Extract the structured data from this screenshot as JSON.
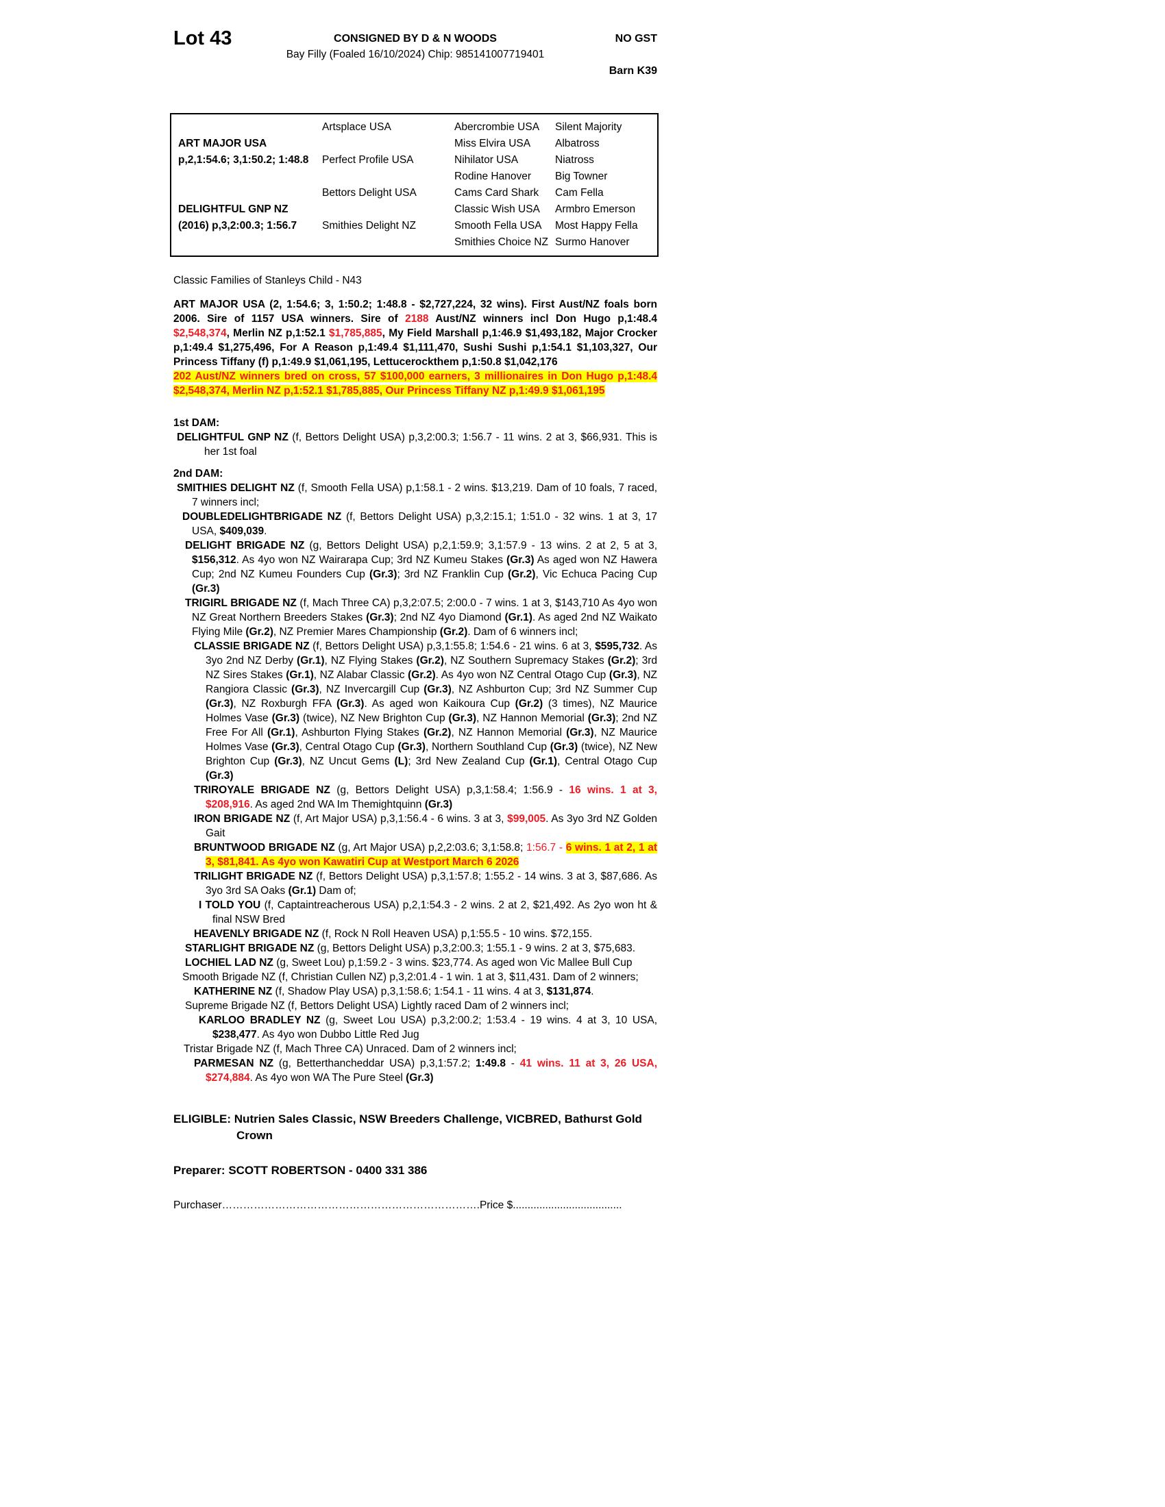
{
  "colors": {
    "red": "#ed1c24",
    "highlight": "#ffff00"
  },
  "header": {
    "lot": "Lot 43",
    "consignor": "CONSIGNED BY D & N WOODS",
    "no_gst": "NO GST",
    "foal_info": "Bay Filly (Foaled 16/10/2024) Chip: 985141007719401",
    "barn": "Barn K39"
  },
  "pedigree": {
    "rows": [
      [
        "",
        "Artsplace USA",
        "Abercrombie USA",
        "Silent Majority"
      ],
      [
        "ART MAJOR USA",
        "",
        "Miss Elvira USA",
        "Albatross"
      ],
      [
        "p,2,1:54.6; 3,1:50.2; 1:48.8",
        "Perfect Profile USA",
        "Nihilator USA",
        "Niatross"
      ],
      [
        "",
        "",
        "Rodine Hanover",
        "Big Towner"
      ],
      [
        "",
        "Bettors Delight USA",
        "Cams Card Shark",
        "Cam Fella"
      ],
      [
        "DELIGHTFUL GNP NZ",
        "",
        "Classic Wish USA",
        "Armbro Emerson"
      ],
      [
        "(2016) p,3,2:00.3; 1:56.7",
        "Smithies Delight NZ",
        "Smooth Fella USA",
        "Most Happy Fella"
      ],
      [
        "",
        "",
        "Smithies Choice NZ",
        "Surmo Hanover"
      ]
    ]
  },
  "body_paras": [
    {
      "name": "family-line",
      "ind": "c0",
      "mt": 24,
      "justify": false,
      "seg": [
        [
          "n",
          "Classic Families of Stanleys Child - N43"
        ]
      ]
    },
    {
      "name": "sire-paragraph",
      "ind": "c0",
      "mt": 14,
      "seg": [
        [
          "b",
          "ART MAJOR USA (2, 1:54.6; 3, 1:50.2; 1:48.8 - $2,727,224, 32 wins). First Aust/NZ foals born 2006. Sire of 1157 USA winners. Sire of "
        ],
        [
          "rb",
          "2188"
        ],
        [
          "b",
          " Aust/NZ winners incl Don Hugo p,1:48.4 "
        ],
        [
          "rb",
          "$2,548,374"
        ],
        [
          "b",
          ", Merlin NZ p,1:52.1 "
        ],
        [
          "rb",
          "$1,785,885"
        ],
        [
          "b",
          ", My Field Marshall p,1:46.9 $1,493,182, Major Crocker p,1:49.4 $1,275,496, For A Reason p,1:49.4 $1,111,470, Sushi Sushi p,1:54.1 $1,103,327, Our Princess Tiffany (f) p,1:49.9 $1,061,195, Lettucerockthem p,1:50.8 $1,042,176"
        ]
      ]
    },
    {
      "name": "cross-highlight-paragraph",
      "ind": "c0",
      "mt": 0,
      "seg": [
        [
          "hl",
          "202 Aust/NZ winners bred on cross, 57 $100,000 earners, 3 millionaires in Don Hugo p,1:48.4 $2,548,374, Merlin NZ p,1:52.1 $1,785,885, Our Princess Tiffany NZ p,1:49.9 $1,061,195"
        ]
      ]
    },
    {
      "name": "first-dam-heading",
      "ind": "c0",
      "mt": 26,
      "justify": false,
      "seg": [
        [
          "b",
          "1st DAM:"
        ]
      ]
    },
    {
      "name": "dam-entry-delightful-gnp",
      "ind": "c1b",
      "mt": 0,
      "seg": [
        [
          "b",
          "DELIGHTFUL GNP NZ "
        ],
        [
          "n",
          "(f, Bettors Delight USA) p,3,2:00.3; 1:56.7 - 11 wins. 2 at 3, $66,931. This is her 1st foal"
        ]
      ]
    },
    {
      "name": "second-dam-heading",
      "ind": "c0",
      "mt": 11,
      "justify": false,
      "seg": [
        [
          "b",
          "2nd DAM:"
        ]
      ]
    },
    {
      "name": "dam-entry-smithies-delight",
      "ind": "c1",
      "mt": 0,
      "seg": [
        [
          "b",
          "SMITHIES DELIGHT NZ "
        ],
        [
          "n",
          "(f, Smooth Fella USA) p,1:58.1 - 2 wins. $13,219. Dam of 10 foals, 7 raced, 7 winners incl;"
        ]
      ]
    },
    {
      "name": "dam-entry-doubledelightbrigade",
      "ind": "c2",
      "mt": 0,
      "seg": [
        [
          "b",
          "DOUBLEDELIGHTBRIGADE NZ "
        ],
        [
          "n",
          "(f, Bettors Delight USA) p,3,2:15.1; 1:51.0 - 32 wins. 1 at 3, 17 USA, "
        ],
        [
          "b",
          "$409,039"
        ],
        [
          "n",
          "."
        ]
      ]
    },
    {
      "name": "dam-entry-delight-brigade",
      "ind": "c3",
      "mt": 0,
      "seg": [
        [
          "b",
          "DELIGHT BRIGADE NZ "
        ],
        [
          "n",
          "(g, Bettors Delight USA) p,2,1:59.9; 3,1:57.9 - 13 wins. 2 at 2, 5 at 3, "
        ],
        [
          "b",
          "$156,312"
        ],
        [
          "n",
          ". As 4yo won NZ Wairarapa Cup; 3rd NZ Kumeu Stakes "
        ],
        [
          "b",
          "(Gr.3)"
        ],
        [
          "n",
          " As aged won NZ Hawera Cup; 2nd NZ Kumeu Founders Cup "
        ],
        [
          "b",
          "(Gr.3)"
        ],
        [
          "n",
          "; 3rd NZ Franklin Cup "
        ],
        [
          "b",
          "(Gr.2)"
        ],
        [
          "n",
          ", Vic Echuca Pacing Cup "
        ],
        [
          "b",
          "(Gr.3)"
        ]
      ]
    },
    {
      "name": "dam-entry-trigirl-brigade",
      "ind": "c3",
      "mt": 0,
      "seg": [
        [
          "b",
          "TRIGIRL BRIGADE NZ "
        ],
        [
          "n",
          "(f, Mach Three CA) p,3,2:07.5; 2:00.0 - 7 wins. 1 at 3, $143,710 As 4yo won NZ Great Northern Breeders Stakes "
        ],
        [
          "b",
          "(Gr.3)"
        ],
        [
          "n",
          "; 2nd NZ 4yo Diamond "
        ],
        [
          "b",
          "(Gr.1)"
        ],
        [
          "n",
          ". As aged 2nd NZ Waikato Flying Mile "
        ],
        [
          "b",
          "(Gr.2)"
        ],
        [
          "n",
          ", NZ Premier Mares Championship "
        ],
        [
          "b",
          "(Gr.2)"
        ],
        [
          "n",
          ". Dam of 6 winners incl;"
        ]
      ]
    },
    {
      "name": "dam-entry-classie-brigade",
      "ind": "c4",
      "mt": 0,
      "seg": [
        [
          "b",
          "CLASSIE BRIGADE NZ "
        ],
        [
          "n",
          "(f, Bettors Delight USA) p,3,1:55.8; 1:54.6 - 21 wins. 6 at 3, "
        ],
        [
          "b",
          "$595,732"
        ],
        [
          "n",
          ". As 3yo 2nd NZ Derby "
        ],
        [
          "b",
          "(Gr.1)"
        ],
        [
          "n",
          ", NZ Flying Stakes "
        ],
        [
          "b",
          "(Gr.2)"
        ],
        [
          "n",
          ", NZ Southern Supremacy Stakes "
        ],
        [
          "b",
          "(Gr.2)"
        ],
        [
          "n",
          "; 3rd NZ Sires Stakes "
        ],
        [
          "b",
          "(Gr.1)"
        ],
        [
          "n",
          ", NZ Alabar Classic "
        ],
        [
          "b",
          "(Gr.2)"
        ],
        [
          "n",
          ". As 4yo won NZ Central Otago Cup "
        ],
        [
          "b",
          "(Gr.3)"
        ],
        [
          "n",
          ", NZ Rangiora Classic "
        ],
        [
          "b",
          "(Gr.3)"
        ],
        [
          "n",
          ", NZ Invercargill Cup "
        ],
        [
          "b",
          "(Gr.3)"
        ],
        [
          "n",
          ", NZ Ashburton Cup; 3rd NZ Summer Cup "
        ],
        [
          "b",
          "(Gr.3)"
        ],
        [
          "n",
          ", NZ Roxburgh FFA "
        ],
        [
          "b",
          "(Gr.3)"
        ],
        [
          "n",
          ". As aged won Kaikoura Cup "
        ],
        [
          "b",
          "(Gr.2)"
        ],
        [
          "n",
          " (3 times), NZ Maurice Holmes Vase "
        ],
        [
          "b",
          "(Gr.3)"
        ],
        [
          "n",
          " (twice), NZ New Brighton Cup "
        ],
        [
          "b",
          "(Gr.3)"
        ],
        [
          "n",
          ", NZ Hannon Memorial "
        ],
        [
          "b",
          "(Gr.3)"
        ],
        [
          "n",
          "; 2nd NZ Free For All "
        ],
        [
          "b",
          "(Gr.1)"
        ],
        [
          "n",
          ", Ashburton Flying Stakes "
        ],
        [
          "b",
          "(Gr.2)"
        ],
        [
          "n",
          ", NZ Hannon Memorial "
        ],
        [
          "b",
          "(Gr.3)"
        ],
        [
          "n",
          ", NZ Maurice Holmes Vase "
        ],
        [
          "b",
          "(Gr.3)"
        ],
        [
          "n",
          ", Central Otago Cup "
        ],
        [
          "b",
          "(Gr.3)"
        ],
        [
          "n",
          ", Northern Southland Cup "
        ],
        [
          "b",
          "(Gr.3)"
        ],
        [
          "n",
          " (twice), NZ New Brighton Cup "
        ],
        [
          "b",
          "(Gr.3)"
        ],
        [
          "n",
          ", NZ Uncut Gems "
        ],
        [
          "b",
          "(L)"
        ],
        [
          "n",
          "; 3rd New Zealand Cup "
        ],
        [
          "b",
          "(Gr.1)"
        ],
        [
          "n",
          ", Central Otago Cup "
        ],
        [
          "b",
          "(Gr.3)"
        ]
      ]
    },
    {
      "name": "dam-entry-triroyale-brigade",
      "ind": "c4",
      "mt": 0,
      "seg": [
        [
          "b",
          "TRIROYALE BRIGADE NZ "
        ],
        [
          "n",
          "(g, Bettors Delight USA) p,3,1:58.4; 1:56.9 - "
        ],
        [
          "rb",
          "16 wins. 1 at 3, $208,916"
        ],
        [
          "n",
          ". As aged 2nd WA Im Themightquinn "
        ],
        [
          "b",
          "(Gr.3)"
        ]
      ]
    },
    {
      "name": "dam-entry-iron-brigade",
      "ind": "c4",
      "mt": 0,
      "seg": [
        [
          "b",
          "IRON BRIGADE NZ "
        ],
        [
          "n",
          "(f, Art Major USA) p,3,1:56.4 - 6 wins. 3 at 3, "
        ],
        [
          "rb",
          "$99,005"
        ],
        [
          "n",
          ". As 3yo 3rd NZ Golden Gait"
        ]
      ]
    },
    {
      "name": "dam-entry-bruntwood-brigade",
      "ind": "c4",
      "mt": 0,
      "seg": [
        [
          "b",
          "BRUNTWOOD BRIGADE NZ "
        ],
        [
          "n",
          "(g, Art Major USA) p,2,2:03.6; 3,1:58.8; "
        ],
        [
          "r",
          "1:56.7 - "
        ],
        [
          "hl",
          "6 wins. 1 at 2, 1 at 3, $81,841. As 4yo won Kawatiri Cup at Westport March 6 2026"
        ]
      ]
    },
    {
      "name": "dam-entry-trilight-brigade",
      "ind": "c4",
      "mt": 0,
      "seg": [
        [
          "b",
          "TRILIGHT BRIGADE NZ "
        ],
        [
          "n",
          "(f, Bettors Delight USA) p,3,1:57.8; 1:55.2 - 14 wins. 3 at 3, $87,686. As 3yo 3rd SA Oaks "
        ],
        [
          "b",
          "(Gr.1)"
        ],
        [
          "n",
          " Dam of;"
        ]
      ]
    },
    {
      "name": "dam-entry-i-told-you",
      "ind": "c5",
      "mt": 0,
      "seg": [
        [
          "b",
          "I TOLD YOU "
        ],
        [
          "n",
          "(f, Captaintreacherous USA) p,2,1:54.3 - 2 wins. 2 at 2, $21,492. As 2yo won ht & final NSW Bred"
        ]
      ]
    },
    {
      "name": "dam-entry-heavenly-brigade",
      "ind": "c4",
      "mt": 0,
      "seg": [
        [
          "b",
          "HEAVENLY BRIGADE NZ "
        ],
        [
          "n",
          "(f, Rock N Roll Heaven USA) p,1:55.5 - 10 wins. $72,155."
        ]
      ]
    },
    {
      "name": "dam-entry-starlight-brigade",
      "ind": "c3",
      "mt": 0,
      "seg": [
        [
          "b",
          "STARLIGHT BRIGADE NZ "
        ],
        [
          "n",
          "(g, Bettors Delight USA) p,3,2:00.3; 1:55.1 - 9 wins. 2 at 3, $75,683."
        ]
      ]
    },
    {
      "name": "dam-entry-lochiel-lad",
      "ind": "c3",
      "mt": 0,
      "seg": [
        [
          "b",
          "LOCHIEL LAD NZ "
        ],
        [
          "n",
          "(g, Sweet Lou) p,1:59.2 - 3 wins. $23,774. As aged won Vic Mallee Bull Cup"
        ]
      ]
    },
    {
      "name": "dam-entry-smooth-brigade",
      "ind": "c2",
      "mt": 0,
      "seg": [
        [
          "n",
          "Smooth Brigade NZ (f, Christian Cullen NZ) p,3,2:01.4 - 1 win. 1 at 3, $11,431. Dam of 2 winners;"
        ]
      ]
    },
    {
      "name": "dam-entry-katherine",
      "ind": "c4",
      "mt": 0,
      "seg": [
        [
          "b",
          "KATHERINE NZ "
        ],
        [
          "n",
          "(f, Shadow Play USA) p,3,1:58.6; 1:54.1 - 11 wins. 4 at 3, "
        ],
        [
          "b",
          "$131,874"
        ],
        [
          "n",
          "."
        ]
      ]
    },
    {
      "name": "dam-entry-supreme-brigade",
      "ind": "c3",
      "mt": 0,
      "seg": [
        [
          "n",
          "Supreme Brigade NZ (f, Bettors Delight USA) Lightly raced Dam of 2 winners incl;"
        ]
      ]
    },
    {
      "name": "dam-entry-karloo-bradley",
      "ind": "c5",
      "mt": 0,
      "seg": [
        [
          "b",
          "KARLOO BRADLEY NZ "
        ],
        [
          "n",
          "(g, Sweet Lou USA) p,3,2:00.2; 1:53.4 - 19 wins. 4 at 3, 10 USA, "
        ],
        [
          "b",
          "$238,477"
        ],
        [
          "n",
          ". As 4yo won Dubbo Little Red Jug"
        ]
      ]
    },
    {
      "name": "dam-entry-tristar-brigade",
      "ind": "c6",
      "mt": 0,
      "seg": [
        [
          "n",
          "Tristar Brigade NZ (f, Mach Three CA) Unraced. Dam of 2 winners incl;"
        ]
      ]
    },
    {
      "name": "dam-entry-parmesan",
      "ind": "c4",
      "mt": 0,
      "seg": [
        [
          "b",
          "PARMESAN NZ "
        ],
        [
          "n",
          "(g, Betterthancheddar USA) p,3,1:57.2; "
        ],
        [
          "b",
          "1:49.8"
        ],
        [
          "n",
          " - "
        ],
        [
          "rb",
          "41 wins. 11 at 3, 26 USA, $274,884"
        ],
        [
          "n",
          ". As 4yo won WA The Pure Steel "
        ],
        [
          "b",
          "(Gr.3)"
        ]
      ]
    },
    {
      "name": "eligible-line",
      "ind": "c0",
      "mt": 38,
      "cls": "elig",
      "seg": [
        [
          "b",
          "ELIGIBLE: Nutrien Sales Classic, NSW Breeders Challenge, VICBRED, Bathurst Gold Crown"
        ]
      ]
    },
    {
      "name": "preparer-line",
      "ind": "c0",
      "mt": 28,
      "cls": "prep",
      "seg": [
        [
          "b",
          "Preparer: SCOTT ROBERTSON - 0400 331 386"
        ]
      ]
    },
    {
      "name": "purchaser-line",
      "ind": "c0",
      "mt": 30,
      "cls": "purch",
      "seg": [
        [
          "n",
          "Purchaser……………………………………………………………….Price $....................................."
        ]
      ]
    }
  ]
}
